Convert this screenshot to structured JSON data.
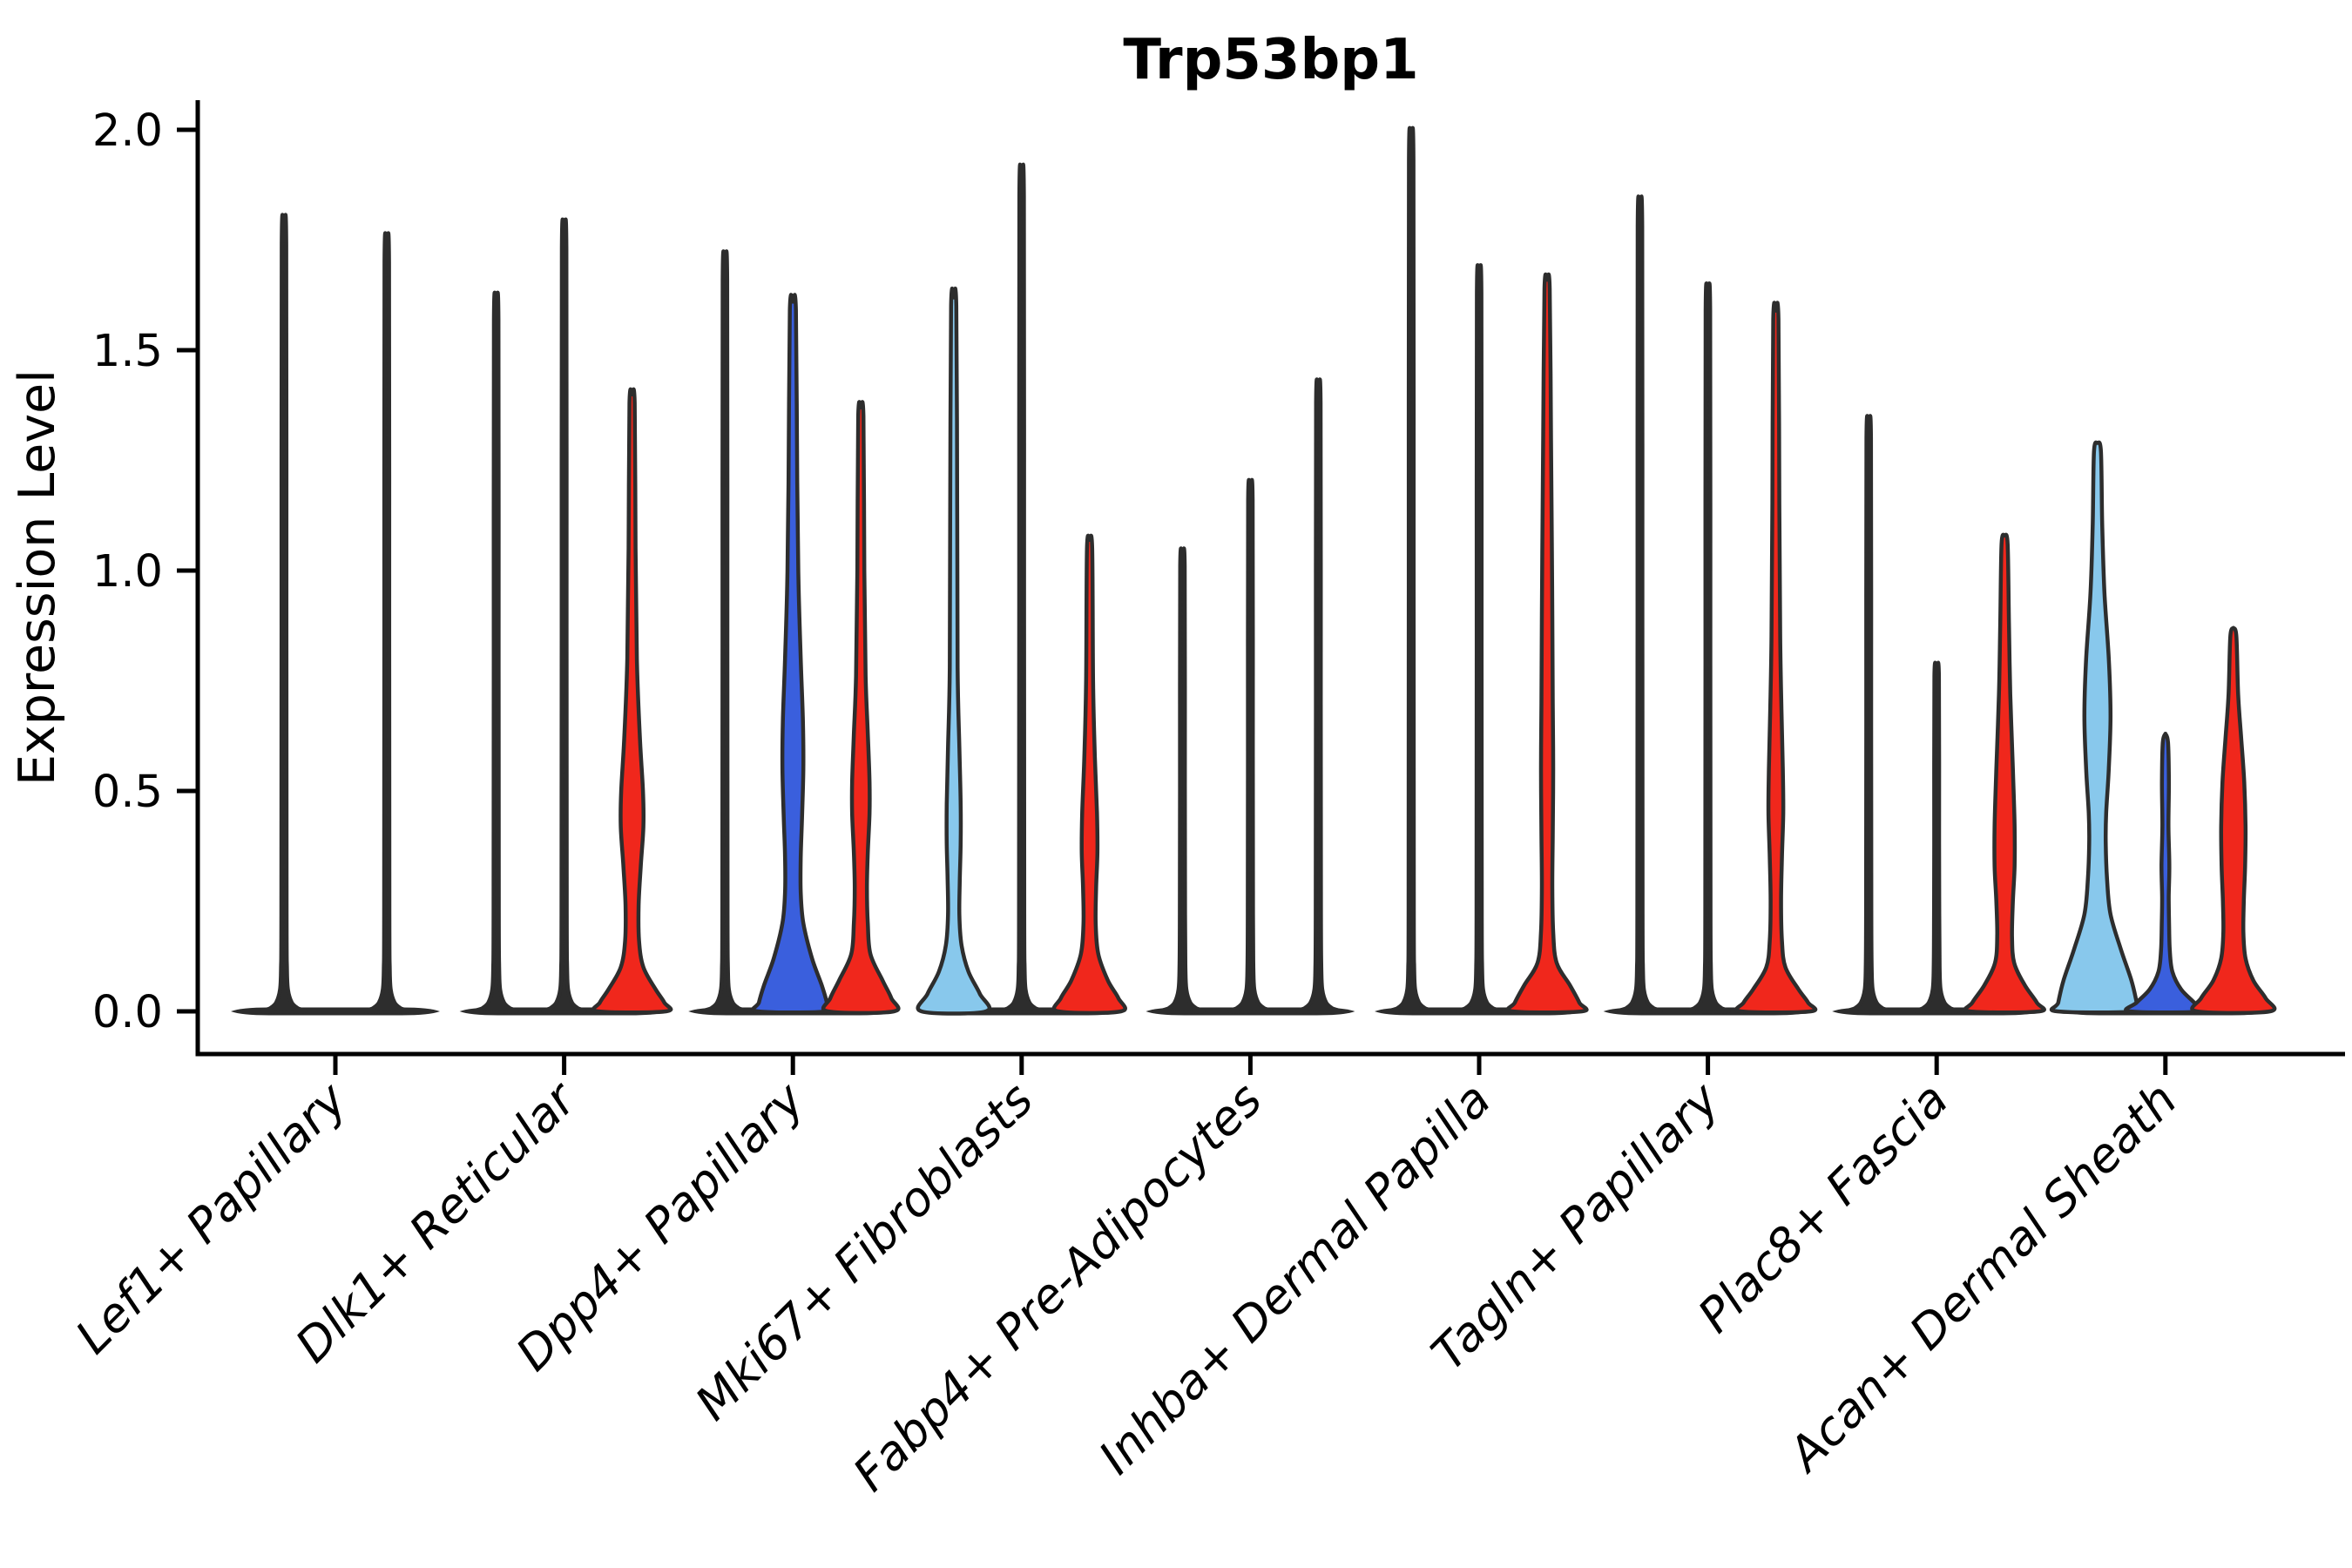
{
  "title": "Trp53bp1",
  "chart_data": {
    "type": "violin",
    "title": "Trp53bp1",
    "xlabel": "",
    "ylabel": "Expression Level",
    "ylim": [
      0,
      2.05
    ],
    "yticks": [
      0.0,
      0.5,
      1.0,
      1.5,
      2.0
    ],
    "x_tick_rotation": 45,
    "grid": false,
    "legend": "none",
    "outline_color": "#2d2d2d",
    "series_colors": {
      "light_blue": "#88C8EC",
      "dark_blue": "#3A5FDD",
      "red": "#F0271C"
    },
    "categories": [
      "Lef1+ Papillary",
      "Dlk1+ Reticular",
      "Dpp4+ Papillary",
      "Mki67+ Fibroblasts",
      "Fabp4+ Pre-Adipocytes",
      "Inhba+ Dermal Papilla",
      "Tagln+ Papillary",
      "Plac8+ Fascia",
      "Acan+ Dermal Sheath"
    ],
    "groups": [
      {
        "label": "Lef1+ Papillary",
        "violins": [
          {
            "offset": -59,
            "color": "thin",
            "max": 1.75,
            "profile": null
          },
          {
            "offset": 59,
            "color": "thin",
            "max": 1.71,
            "profile": null
          }
        ]
      },
      {
        "label": "Dlk1+ Reticular",
        "violins": [
          {
            "offset": -78,
            "color": "thin",
            "max": 1.58,
            "profile": null
          },
          {
            "offset": 0,
            "color": "thin",
            "max": 1.74,
            "profile": null
          },
          {
            "offset": 78,
            "color": "red",
            "max": 1.4,
            "profile": [
              [
                1.4,
                0
              ],
              [
                1.38,
                3
              ],
              [
                1.05,
                4
              ],
              [
                0.8,
                5.5
              ],
              [
                0.62,
                9
              ],
              [
                0.5,
                12.5
              ],
              [
                0.42,
                13
              ],
              [
                0.33,
                10
              ],
              [
                0.24,
                7.5
              ],
              [
                0.16,
                8
              ],
              [
                0.1,
                13
              ],
              [
                0.05,
                27
              ],
              [
                0.02,
                37
              ],
              [
                0,
                39
              ]
            ]
          }
        ]
      },
      {
        "label": "Dpp4+ Papillary",
        "violins": [
          {
            "offset": -78,
            "color": "thin",
            "max": 1.67,
            "profile": null
          },
          {
            "offset": 0,
            "color": "dark_blue",
            "max": 1.61,
            "profile": [
              [
                1.61,
                0
              ],
              [
                1.59,
                3.5
              ],
              [
                1.2,
                5
              ],
              [
                0.97,
                6.5
              ],
              [
                0.8,
                9
              ],
              [
                0.66,
                11.5
              ],
              [
                0.55,
                12
              ],
              [
                0.44,
                10.5
              ],
              [
                0.35,
                9
              ],
              [
                0.27,
                9
              ],
              [
                0.2,
                12
              ],
              [
                0.12,
                22
              ],
              [
                0.06,
                33
              ],
              [
                0.02,
                39
              ],
              [
                0,
                40
              ]
            ]
          },
          {
            "offset": 78,
            "color": "red",
            "max": 1.37,
            "profile": [
              [
                1.37,
                0
              ],
              [
                1.35,
                3
              ],
              [
                1.0,
                4
              ],
              [
                0.76,
                5.5
              ],
              [
                0.63,
                8
              ],
              [
                0.52,
                10
              ],
              [
                0.45,
                10
              ],
              [
                0.36,
                8
              ],
              [
                0.28,
                7
              ],
              [
                0.2,
                8
              ],
              [
                0.13,
                11
              ],
              [
                0.07,
                25
              ],
              [
                0.03,
                35
              ],
              [
                0,
                38
              ]
            ]
          }
        ]
      },
      {
        "label": "Mki67+ Fibroblasts",
        "violins": [
          {
            "offset": -78,
            "color": "light_blue",
            "max": 1.62,
            "profile": [
              [
                1.62,
                0
              ],
              [
                1.6,
                3
              ],
              [
                1.15,
                4
              ],
              [
                0.78,
                4.5
              ],
              [
                0.6,
                6.5
              ],
              [
                0.47,
                8
              ],
              [
                0.38,
                8
              ],
              [
                0.3,
                7
              ],
              [
                0.22,
                6.5
              ],
              [
                0.15,
                9
              ],
              [
                0.09,
                17
              ],
              [
                0.04,
                30
              ],
              [
                0,
                37
              ]
            ]
          },
          {
            "offset": 0,
            "color": "thin",
            "max": 1.86,
            "profile": null
          },
          {
            "offset": 78,
            "color": "red",
            "max": 1.07,
            "profile": [
              [
                1.07,
                0
              ],
              [
                1.05,
                3
              ],
              [
                0.75,
                4
              ],
              [
                0.58,
                6
              ],
              [
                0.45,
                8.5
              ],
              [
                0.36,
                9
              ],
              [
                0.28,
                7.5
              ],
              [
                0.2,
                7
              ],
              [
                0.13,
                10
              ],
              [
                0.07,
                21
              ],
              [
                0.03,
                33
              ],
              [
                0,
                36
              ]
            ]
          }
        ]
      },
      {
        "label": "Fabp4+ Pre-Adipocytes",
        "violins": [
          {
            "offset": -78,
            "color": "thin",
            "max": 1.02,
            "profile": null
          },
          {
            "offset": 0,
            "color": "thin",
            "max": 1.17,
            "profile": null
          },
          {
            "offset": 78,
            "color": "thin",
            "max": 1.39,
            "profile": null
          }
        ]
      },
      {
        "label": "Inhba+ Dermal Papilla",
        "violins": [
          {
            "offset": -78,
            "color": "thin",
            "max": 1.94,
            "profile": null
          },
          {
            "offset": 0,
            "color": "thin",
            "max": 1.64,
            "profile": null
          },
          {
            "offset": 78,
            "color": "red",
            "max": 1.66,
            "profile": [
              [
                1.66,
                0
              ],
              [
                1.64,
                3
              ],
              [
                1.3,
                4.5
              ],
              [
                1.05,
                5.5
              ],
              [
                0.9,
                6
              ],
              [
                0.7,
                6.5
              ],
              [
                0.55,
                7
              ],
              [
                0.4,
                6.5
              ],
              [
                0.28,
                6
              ],
              [
                0.18,
                7
              ],
              [
                0.11,
                11
              ],
              [
                0.06,
                26
              ],
              [
                0.02,
                37
              ],
              [
                0,
                40
              ]
            ]
          }
        ]
      },
      {
        "label": "Tagln+ Papillary",
        "violins": [
          {
            "offset": -78,
            "color": "thin",
            "max": 1.79,
            "profile": null
          },
          {
            "offset": 0,
            "color": "thin",
            "max": 1.6,
            "profile": null
          },
          {
            "offset": 78,
            "color": "red",
            "max": 1.59,
            "profile": [
              [
                1.59,
                0
              ],
              [
                1.57,
                3
              ],
              [
                1.15,
                4
              ],
              [
                0.85,
                5
              ],
              [
                0.68,
                6.5
              ],
              [
                0.55,
                8
              ],
              [
                0.45,
                8.5
              ],
              [
                0.35,
                7
              ],
              [
                0.25,
                6
              ],
              [
                0.16,
                7
              ],
              [
                0.1,
                11
              ],
              [
                0.05,
                26
              ],
              [
                0.02,
                37
              ],
              [
                0,
                40
              ]
            ]
          }
        ]
      },
      {
        "label": "Plac8+ Fascia",
        "violins": [
          {
            "offset": -78,
            "color": "thin",
            "max": 1.31,
            "profile": null
          },
          {
            "offset": 0,
            "color": "thin",
            "max": 0.77,
            "profile": null
          },
          {
            "offset": 78,
            "color": "red",
            "max": 1.08,
            "profile": [
              [
                1.08,
                0
              ],
              [
                1.06,
                3.5
              ],
              [
                0.88,
                5
              ],
              [
                0.72,
                6.5
              ],
              [
                0.55,
                9.5
              ],
              [
                0.42,
                11.5
              ],
              [
                0.33,
                11.5
              ],
              [
                0.25,
                9.5
              ],
              [
                0.17,
                8.5
              ],
              [
                0.11,
                11
              ],
              [
                0.06,
                23
              ],
              [
                0.02,
                37
              ],
              [
                0,
                40
              ]
            ]
          }
        ]
      },
      {
        "label": "Acan+ Dermal Sheath",
        "violins": [
          {
            "offset": -78,
            "color": "light_blue",
            "max": 1.29,
            "profile": [
              [
                1.29,
                0
              ],
              [
                1.27,
                4
              ],
              [
                1.1,
                5.5
              ],
              [
                0.95,
                8
              ],
              [
                0.8,
                13
              ],
              [
                0.67,
                15
              ],
              [
                0.55,
                13
              ],
              [
                0.45,
                10
              ],
              [
                0.38,
                9.5
              ],
              [
                0.3,
                11
              ],
              [
                0.22,
                15
              ],
              [
                0.14,
                27
              ],
              [
                0.07,
                39
              ],
              [
                0.02,
                45
              ],
              [
                0,
                46
              ]
            ]
          },
          {
            "offset": 0,
            "color": "dark_blue",
            "max": 0.63,
            "profile": [
              [
                0.63,
                0
              ],
              [
                0.61,
                3
              ],
              [
                0.52,
                4
              ],
              [
                0.42,
                3.5
              ],
              [
                0.33,
                4.5
              ],
              [
                0.26,
                3.8
              ],
              [
                0.2,
                4.2
              ],
              [
                0.14,
                5
              ],
              [
                0.09,
                8
              ],
              [
                0.05,
                18
              ],
              [
                0.02,
                33
              ],
              [
                0,
                41
              ]
            ]
          },
          {
            "offset": 78,
            "color": "red",
            "max": 0.87,
            "profile": [
              [
                0.87,
                0
              ],
              [
                0.85,
                3.5
              ],
              [
                0.72,
                5.5
              ],
              [
                0.62,
                9
              ],
              [
                0.52,
                12.5
              ],
              [
                0.42,
                14
              ],
              [
                0.33,
                13.5
              ],
              [
                0.25,
                12
              ],
              [
                0.18,
                11.5
              ],
              [
                0.12,
                14
              ],
              [
                0.07,
                23
              ],
              [
                0.03,
                37
              ],
              [
                0,
                42
              ]
            ]
          }
        ]
      }
    ]
  }
}
